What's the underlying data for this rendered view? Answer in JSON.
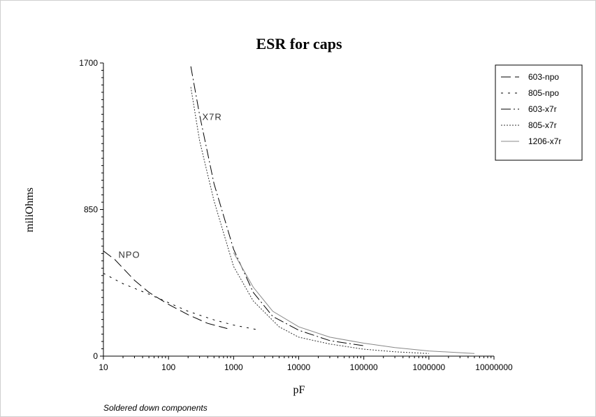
{
  "chart_data": {
    "type": "line",
    "title": "ESR for caps",
    "xlabel": "pF",
    "ylabel": "miliOhms",
    "x_scale": "log",
    "xlim": [
      10,
      10000000
    ],
    "ylim": [
      0,
      1700
    ],
    "x_ticks": [
      "10",
      "100",
      "1000",
      "10000",
      "100000",
      "1000000",
      "10000000"
    ],
    "y_ticks": [
      "0",
      "850",
      "1700"
    ],
    "grid": false,
    "legend_position": "top-right",
    "series": [
      {
        "name": "603-npo",
        "color": "#000000",
        "dash": "14,6",
        "x": [
          10,
          15,
          20,
          30,
          50,
          100,
          200,
          400,
          800
        ],
        "y": [
          610,
          560,
          510,
          440,
          370,
          300,
          240,
          190,
          160
        ]
      },
      {
        "name": "805-npo",
        "color": "#000000",
        "dash": "3,7",
        "x": [
          10,
          20,
          50,
          100,
          200,
          500,
          1000,
          2200
        ],
        "y": [
          480,
          420,
          360,
          310,
          260,
          210,
          180,
          155
        ]
      },
      {
        "name": "603-x7r",
        "color": "#000000",
        "dash": "14,4,2,4",
        "x": [
          220,
          300,
          500,
          1000,
          2000,
          4000,
          10000,
          30000,
          100000
        ],
        "y": [
          1680,
          1400,
          1000,
          620,
          370,
          230,
          150,
          90,
          60
        ]
      },
      {
        "name": "805-x7r",
        "color": "#333333",
        "dash": "2,2",
        "x": [
          220,
          300,
          500,
          1000,
          2000,
          5000,
          10000,
          30000,
          100000,
          300000,
          1000000
        ],
        "y": [
          1560,
          1250,
          900,
          520,
          320,
          170,
          110,
          70,
          40,
          25,
          15
        ]
      },
      {
        "name": "1206-x7r",
        "color": "#888888",
        "dash": "",
        "x": [
          1000,
          2000,
          4000,
          10000,
          30000,
          100000,
          300000,
          1000000,
          5000000
        ],
        "y": [
          600,
          400,
          260,
          170,
          110,
          75,
          50,
          30,
          15
        ]
      }
    ],
    "annotations": [
      {
        "text": "X7R",
        "x": 330,
        "y": 1370
      },
      {
        "text": "NPO",
        "x": 17,
        "y": 570
      }
    ]
  },
  "caption": "Soldered down components"
}
